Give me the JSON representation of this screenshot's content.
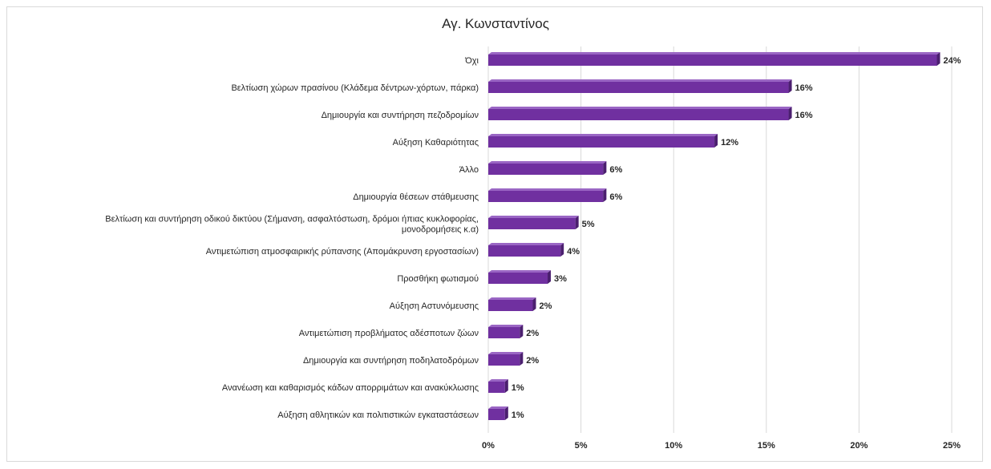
{
  "chart_data": {
    "type": "bar",
    "orientation": "horizontal",
    "title": "Αγ. Κωνσταντίνος",
    "categories": [
      [
        "Όχι"
      ],
      [
        "Βελτίωση χώρων πρασίνου (Κλάδεμα δέντρων-χόρτων, πάρκα)"
      ],
      [
        "Δημιουργία και συντήρηση πεζοδρομίων"
      ],
      [
        "Αύξηση Καθαριότητας"
      ],
      [
        "Άλλο"
      ],
      [
        "Δημιουργία θέσεων στάθμευσης"
      ],
      [
        "Βελτίωση και συντήρηση οδικού δικτύου (Σήμανση, ασφαλτόστωση, δρόμοι ήπιας κυκλοφορίας,",
        "μονοδρομήσεις κ.α)"
      ],
      [
        "Αντιμετώπιση ατμοσφαιρικής ρύπανσης (Απομάκρυνση εργοστασίων)"
      ],
      [
        "Προσθήκη φωτισμού"
      ],
      [
        "Αύξηση Αστυνόμευσης"
      ],
      [
        "Αντιμετώπιση προβλήματος αδέσποτων ζώων"
      ],
      [
        "Δημιουργία και συντήρηση ποδηλατοδρόμων"
      ],
      [
        "Ανανέωση και καθαρισμός κάδων απορριμάτων και ανακύκλωσης"
      ],
      [
        "Αύξηση αθλητικών και πολιτιστικών εγκαταστάσεων"
      ]
    ],
    "values": [
      24.2,
      16.2,
      16.2,
      12.2,
      6.2,
      6.2,
      4.7,
      3.9,
      3.2,
      2.4,
      1.7,
      1.7,
      0.9,
      0.9
    ],
    "value_labels": [
      "24%",
      "16%",
      "16%",
      "12%",
      "6%",
      "6%",
      "5%",
      "4%",
      "3%",
      "2%",
      "2%",
      "2%",
      "1%",
      "1%"
    ],
    "x_ticks": [
      0,
      5,
      10,
      15,
      20,
      25
    ],
    "x_tick_labels": [
      "0%",
      "5%",
      "10%",
      "15%",
      "20%",
      "25%"
    ],
    "xlim": [
      0,
      25
    ],
    "grid": "vertical",
    "legend": "none",
    "colors": {
      "bar": "#7030a0",
      "bar_dark": "#4b1f6f",
      "bar_top": "#9a66c4",
      "grid": "#d9d9d9"
    }
  }
}
